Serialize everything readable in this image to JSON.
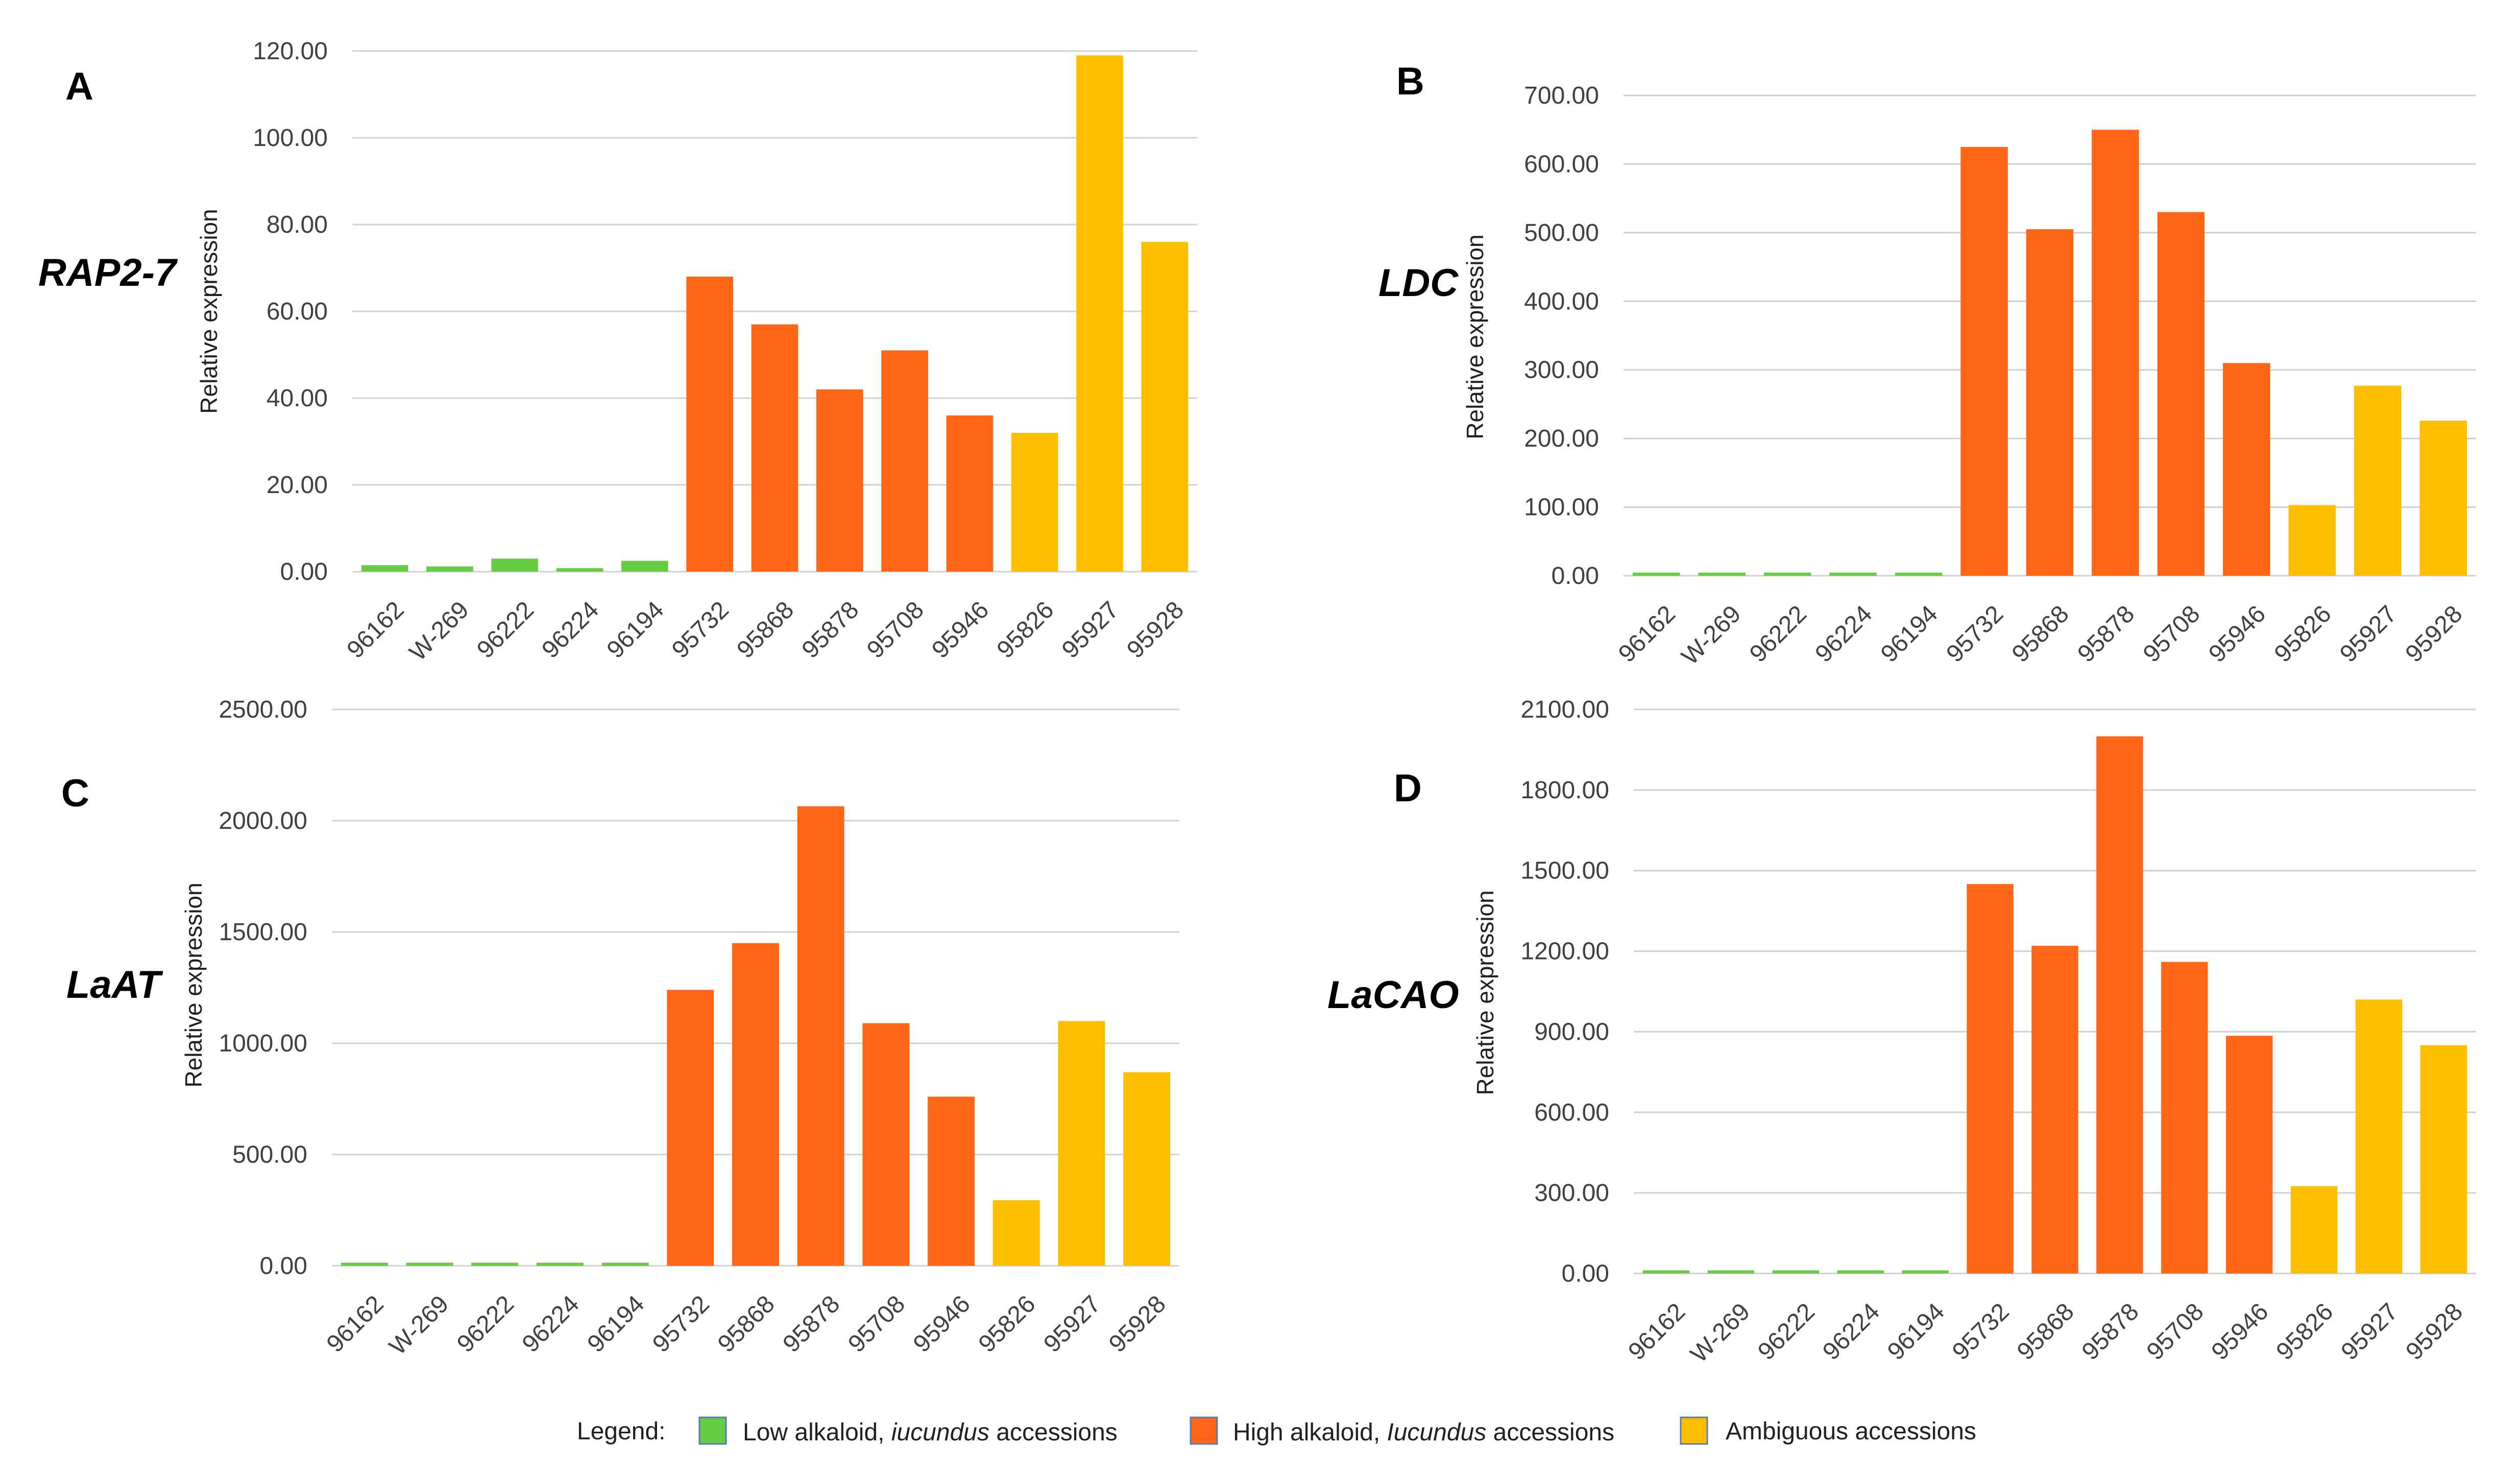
{
  "colors": {
    "low": "#66cc44",
    "high": "#ff6616",
    "ambiguous": "#ffbf00"
  },
  "legend": {
    "prefix": "Legend:",
    "items": [
      {
        "label_plain": "Low alkaloid, ",
        "label_italic": "iucundus",
        "label_end": " accessions",
        "color": "#66cc44"
      },
      {
        "label_plain": "High alkaloid, ",
        "label_italic": "Iucundus",
        "label_end": " accessions",
        "color": "#ff6616"
      },
      {
        "label_plain": "Ambiguous accessions",
        "label_italic": "",
        "label_end": "",
        "color": "#ffbf00"
      }
    ]
  },
  "chart_data": [
    {
      "type": "bar",
      "panel": "A",
      "gene": "RAP2-7",
      "ylabel": "Relative expression",
      "categories": [
        "96162",
        "W-269",
        "96222",
        "96224",
        "96194",
        "95732",
        "95868",
        "95878",
        "95708",
        "95946",
        "95826",
        "95927",
        "95928"
      ],
      "groups": [
        "low",
        "low",
        "low",
        "low",
        "low",
        "high",
        "high",
        "high",
        "high",
        "high",
        "ambiguous",
        "ambiguous",
        "ambiguous"
      ],
      "values": [
        1.5,
        1.2,
        3.0,
        0.8,
        2.5,
        68,
        57,
        42,
        51,
        36,
        32,
        119,
        76
      ],
      "ylim": [
        0,
        120
      ],
      "yticks": [
        0,
        20,
        40,
        60,
        80,
        100,
        120
      ],
      "ytick_labels": [
        "0.00",
        "20.00",
        "40.00",
        "60.00",
        "80.00",
        "100.00",
        "120.00"
      ]
    },
    {
      "type": "bar",
      "panel": "B",
      "gene": "LDC",
      "ylabel": "Relative expression",
      "categories": [
        "96162",
        "W-269",
        "96222",
        "96224",
        "96194",
        "95732",
        "95868",
        "95878",
        "95708",
        "95946",
        "95826",
        "95927",
        "95928"
      ],
      "groups": [
        "low",
        "low",
        "low",
        "low",
        "low",
        "high",
        "high",
        "high",
        "high",
        "high",
        "ambiguous",
        "ambiguous",
        "ambiguous"
      ],
      "values": [
        1,
        1,
        2,
        1,
        2,
        625,
        505,
        650,
        530,
        310,
        103,
        277,
        226
      ],
      "ylim": [
        0,
        700
      ],
      "yticks": [
        0,
        100,
        200,
        300,
        400,
        500,
        600,
        700
      ],
      "ytick_labels": [
        "0.00",
        "100.00",
        "200.00",
        "300.00",
        "400.00",
        "500.00",
        "600.00",
        "700.00"
      ]
    },
    {
      "type": "bar",
      "panel": "C",
      "gene": "LaAT",
      "ylabel": "Relative expression",
      "categories": [
        "96162",
        "W-269",
        "96222",
        "96224",
        "96194",
        "95732",
        "95868",
        "95878",
        "95708",
        "95946",
        "95826",
        "95927",
        "95928"
      ],
      "groups": [
        "low",
        "low",
        "low",
        "low",
        "low",
        "high",
        "high",
        "high",
        "high",
        "high",
        "ambiguous",
        "ambiguous",
        "ambiguous"
      ],
      "values": [
        3,
        3,
        3,
        3,
        3,
        1240,
        1450,
        2065,
        1090,
        760,
        295,
        1100,
        870
      ],
      "ylim": [
        0,
        2500
      ],
      "yticks": [
        0,
        500,
        1000,
        1500,
        2000,
        2500
      ],
      "ytick_labels": [
        "0.00",
        "500.00",
        "1000.00",
        "1500.00",
        "2000.00",
        "2500.00"
      ]
    },
    {
      "type": "bar",
      "panel": "D",
      "gene": "LaCAO",
      "ylabel": "Relative expression",
      "categories": [
        "96162",
        "W-269",
        "96222",
        "96224",
        "96194",
        "95732",
        "95868",
        "95878",
        "95708",
        "95946",
        "95826",
        "95927",
        "95928"
      ],
      "groups": [
        "low",
        "low",
        "low",
        "low",
        "low",
        "high",
        "high",
        "high",
        "high",
        "high",
        "ambiguous",
        "ambiguous",
        "ambiguous"
      ],
      "values": [
        3,
        3,
        3,
        3,
        3,
        1450,
        1220,
        2000,
        1160,
        885,
        325,
        1020,
        850
      ],
      "ylim": [
        0,
        2100
      ],
      "yticks": [
        0,
        300,
        600,
        900,
        1200,
        1500,
        1800,
        2100
      ],
      "ytick_labels": [
        "0.00",
        "300.00",
        "600.00",
        "900.00",
        "1200.00",
        "1500.00",
        "1800.00",
        "2100.00"
      ]
    }
  ]
}
